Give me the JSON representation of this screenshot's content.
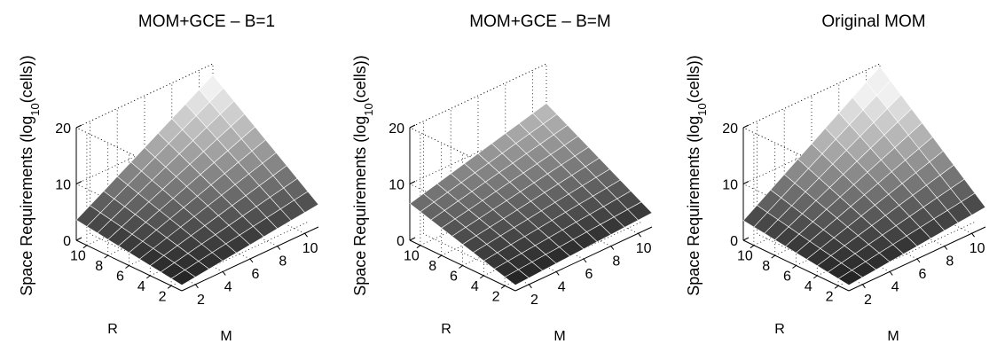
{
  "chart_data": [
    {
      "type": "surface3d",
      "title": "MOM+GCE – B=1",
      "xlabel": "M",
      "ylabel": "R",
      "zlabel_main": "Space Requirements (log",
      "zlabel_sub": "10",
      "zlabel_tail": "(cells))",
      "x_range": [
        1,
        11
      ],
      "y_range": [
        1,
        11
      ],
      "zlim": [
        0,
        20
      ],
      "x_ticks": [
        "2",
        "4",
        "6",
        "8",
        "10"
      ],
      "y_ticks": [
        "2",
        "4",
        "6",
        "8",
        "10"
      ],
      "z_ticks": [
        "0",
        "10",
        "20"
      ],
      "grid": true,
      "colormap": "gray",
      "corner_values": {
        "M1_R1": 1.0,
        "M11_R1": 4.0,
        "M1_R11": 3.6,
        "M11_R11": 18.0
      }
    },
    {
      "type": "surface3d",
      "title": "MOM+GCE – B=M",
      "xlabel": "M",
      "ylabel": "R",
      "zlabel_main": "Space Requirements (log",
      "zlabel_sub": "10",
      "zlabel_tail": "(cells))",
      "x_range": [
        1,
        11
      ],
      "y_range": [
        1,
        11
      ],
      "zlim": [
        0,
        20
      ],
      "x_ticks": [
        "2",
        "4",
        "6",
        "8",
        "10"
      ],
      "y_ticks": [
        "2",
        "4",
        "6",
        "8",
        "10"
      ],
      "z_ticks": [
        "0",
        "10",
        "20"
      ],
      "grid": true,
      "colormap": "gray",
      "corner_values": {
        "M1_R1": 1.0,
        "M11_R1": 2.5,
        "M1_R11": 6.5,
        "M11_R11": 13.0
      }
    },
    {
      "type": "surface3d",
      "title": "Original MOM",
      "xlabel": "M",
      "ylabel": "R",
      "zlabel_main": "Space Requirements (log",
      "zlabel_sub": "10",
      "zlabel_tail": "(cells))",
      "x_range": [
        1,
        11
      ],
      "y_range": [
        1,
        11
      ],
      "zlim": [
        0,
        20
      ],
      "x_ticks": [
        "2",
        "4",
        "6",
        "8",
        "10"
      ],
      "y_ticks": [
        "2",
        "4",
        "6",
        "8",
        "10"
      ],
      "z_ticks": [
        "0",
        "10",
        "20"
      ],
      "grid": true,
      "colormap": "gray",
      "corner_values": {
        "M1_R1": 1.0,
        "M11_R1": 3.5,
        "M1_R11": 3.5,
        "M11_R11": 19.5
      }
    }
  ]
}
